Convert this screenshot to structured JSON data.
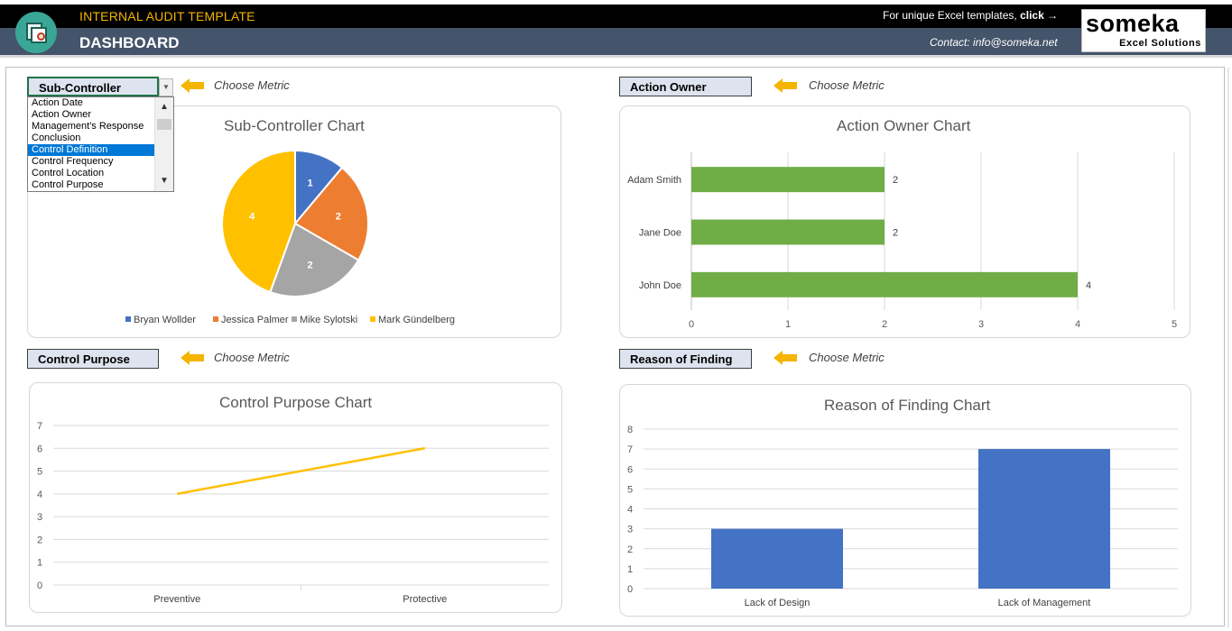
{
  "header": {
    "title": "INTERNAL AUDIT TEMPLATE",
    "subtitle": "DASHBOARD",
    "promo_text": "For unique Excel templates,",
    "promo_link": "click →",
    "contact": "Contact: info@someka.net",
    "brand_name": "someka",
    "brand_tagline": "Excel Solutions"
  },
  "hint_text": "Choose Metric",
  "colors": {
    "accent_yellow": "#F4B400",
    "header_dark": "#000000",
    "header_slate": "#44546A",
    "metric_fill": "#DDE3EF",
    "series_blue": "#4472C4",
    "series_orange": "#ED7D31",
    "series_gray": "#A5A5A5",
    "series_gold": "#FFC000",
    "series_green": "#70AD47"
  },
  "panels": {
    "top_left": {
      "metric": "Sub-Controller"
    },
    "top_right": {
      "metric": "Action Owner"
    },
    "bottom_left": {
      "metric": "Control Purpose"
    },
    "bottom_right": {
      "metric": "Reason of Finding"
    }
  },
  "dropdown": {
    "options": [
      "Action Date",
      "Action Owner",
      "Management's Response",
      "Conclusion",
      "Control Definition",
      "Control Frequency",
      "Control Location",
      "Control Purpose"
    ],
    "highlighted": "Control Definition",
    "scroll_up_icon": "▲",
    "scroll_down_icon": "▼",
    "toggle_icon": "▼"
  },
  "chart_data": [
    {
      "type": "pie",
      "title": "Sub-Controller Chart",
      "categories": [
        "Bryan Wollder",
        "Jessica Palmer",
        "Mike Sylotski",
        "Mark Gündelberg"
      ],
      "values": [
        1,
        2,
        2,
        4
      ],
      "colors": [
        "#4472C4",
        "#ED7D31",
        "#A5A5A5",
        "#FFC000"
      ],
      "legend": "bottom"
    },
    {
      "type": "bar",
      "orientation": "horizontal",
      "title": "Action Owner Chart",
      "categories": [
        "Adam Smith",
        "Jane Doe",
        "John Doe"
      ],
      "values": [
        2,
        2,
        4
      ],
      "xlim": [
        0,
        5
      ],
      "ticks": [
        0,
        1,
        2,
        3,
        4,
        5
      ],
      "color": "#70AD47",
      "grid": true
    },
    {
      "type": "line",
      "title": "Control Purpose Chart",
      "categories": [
        "Preventive",
        "Protective"
      ],
      "values": [
        4,
        6
      ],
      "ylim": [
        0,
        7
      ],
      "ticks": [
        0,
        1,
        2,
        3,
        4,
        5,
        6,
        7
      ],
      "color": "#FFC000",
      "grid": true
    },
    {
      "type": "bar",
      "title": "Reason of Finding Chart",
      "categories": [
        "Lack of Design",
        "Lack of Management"
      ],
      "values": [
        3,
        7
      ],
      "ylim": [
        0,
        8
      ],
      "ticks": [
        0,
        1,
        2,
        3,
        4,
        5,
        6,
        7,
        8
      ],
      "color": "#4472C4",
      "grid": true
    }
  ]
}
